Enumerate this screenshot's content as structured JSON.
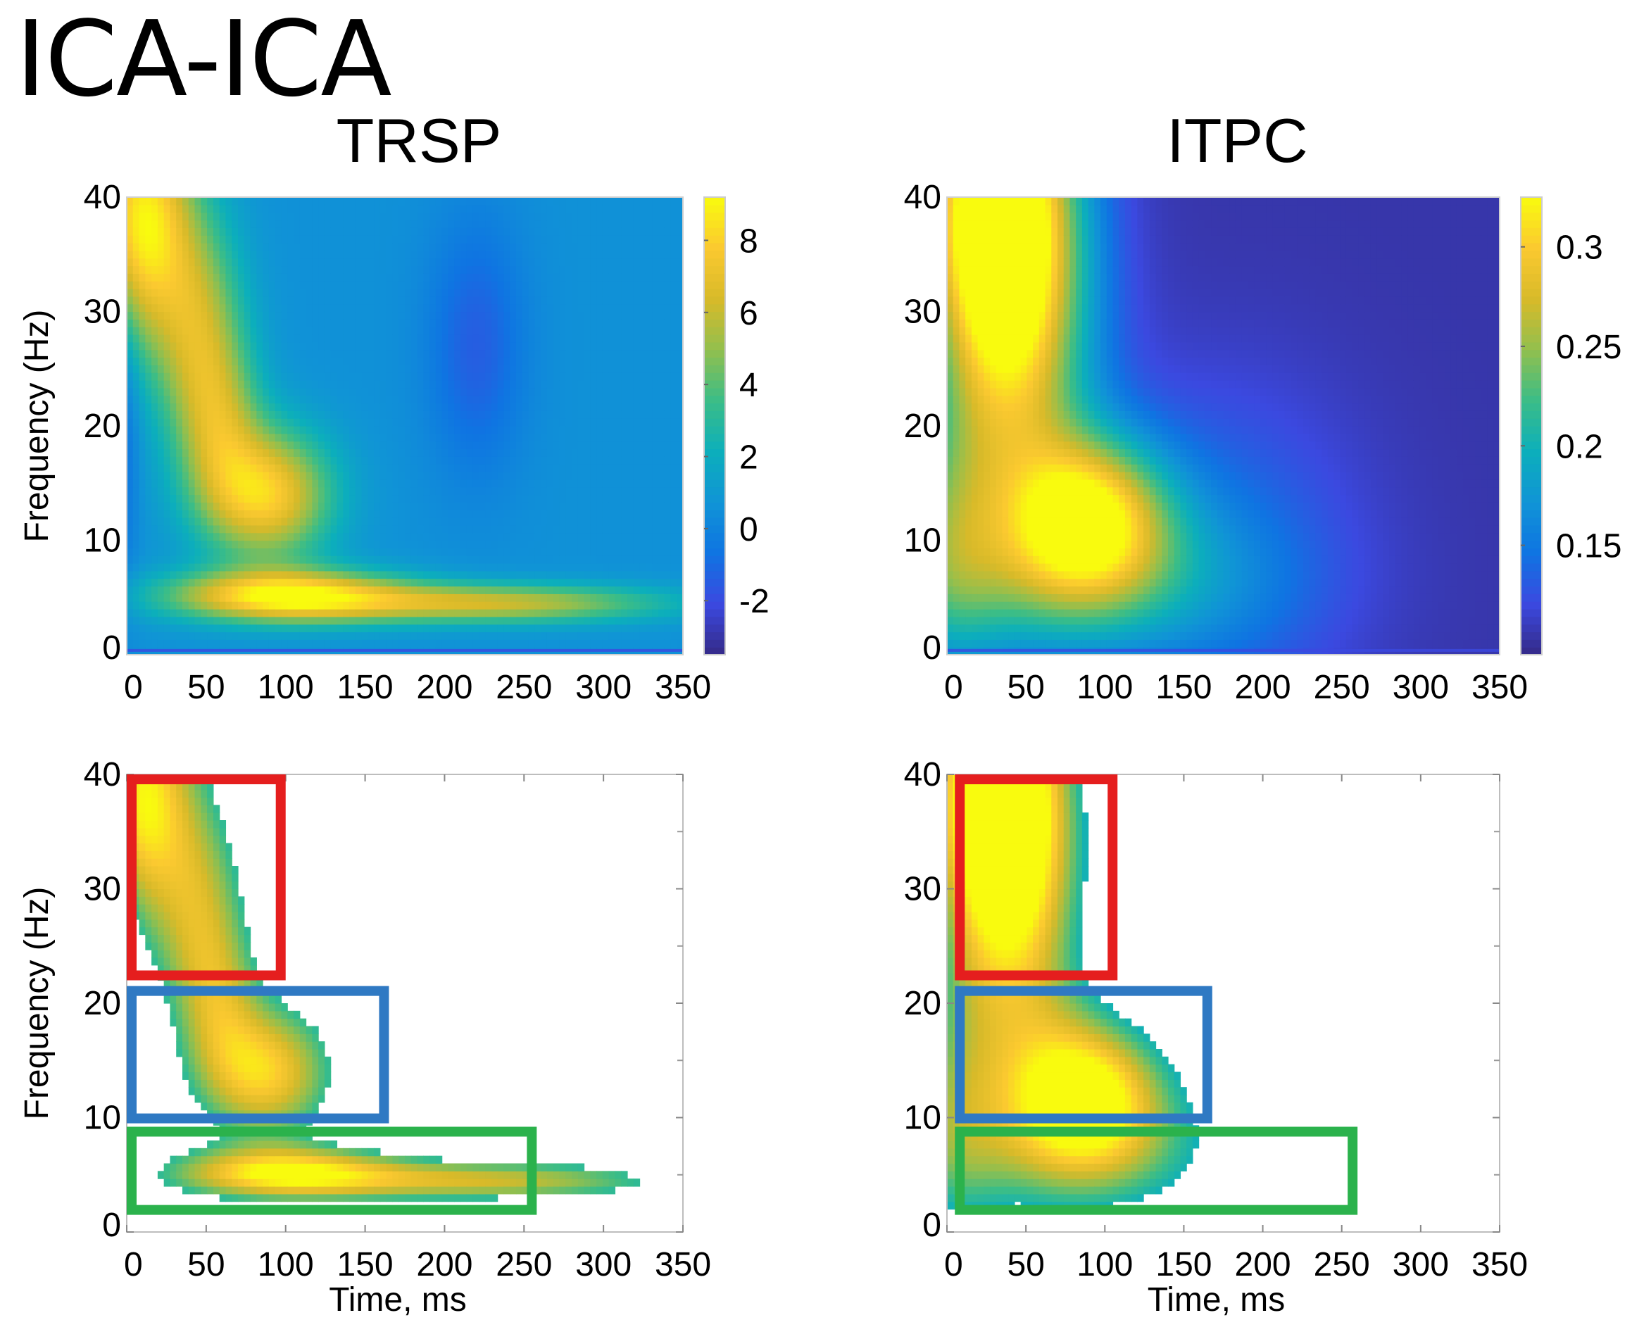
{
  "figure": {
    "title": "ICA-ICA"
  },
  "colors": {
    "parula": [
      "#352a87",
      "#3b49e0",
      "#0f74e2",
      "#1094d6",
      "#0cafbb",
      "#3bbd87",
      "#92bf4e",
      "#d8ba29",
      "#fbc930",
      "#f9fb0e"
    ],
    "box_high_freq": "#e51e1e",
    "box_mid_freq": "#2f79c3",
    "box_low_freq": "#2bb24c"
  },
  "chart_data": [
    {
      "type": "heatmap",
      "panel": "trsp-full",
      "title": "TRSP",
      "xlabel": "",
      "ylabel": "Frequency (Hz)",
      "xlim": [
        0,
        350
      ],
      "ylim": [
        0,
        40
      ],
      "x_ticks": [
        "0",
        "50",
        "100",
        "150",
        "200",
        "250",
        "300",
        "350"
      ],
      "y_ticks": [
        "0",
        "10",
        "20",
        "30",
        "40"
      ],
      "colorbar": {
        "range": [
          -3.5,
          9.2
        ],
        "ticks": [
          "-2",
          "0",
          "2",
          "4",
          "6",
          "8"
        ],
        "tick_values": [
          -2,
          0,
          2,
          4,
          6,
          8
        ]
      },
      "background_value": 0.6,
      "features": [
        {
          "label": "early high-frequency burst",
          "t": 10,
          "f": 38,
          "st": 22,
          "sf": 7,
          "amp": 8.2
        },
        {
          "label": "ridge 25-30 Hz",
          "t": 45,
          "f": 28,
          "st": 20,
          "sf": 7,
          "amp": 5.0
        },
        {
          "label": "mid-frequency peak",
          "t": 88,
          "f": 14,
          "st": 28,
          "sf": 4,
          "amp": 7.2
        },
        {
          "label": "low-frequency onset",
          "t": 100,
          "f": 5.2,
          "st": 52,
          "sf": 1.6,
          "amp": 8.0
        },
        {
          "label": "low-frequency tail",
          "t": 230,
          "f": 4.5,
          "st": 75,
          "sf": 1.2,
          "amp": 5.5
        },
        {
          "label": "ridge 20 Hz",
          "t": 60,
          "f": 20,
          "st": 18,
          "sf": 5,
          "amp": 3.5
        },
        {
          "label": "negative dip",
          "t": 220,
          "f": 27,
          "st": 22,
          "sf": 8,
          "amp": -2.0
        },
        {
          "label": "early low-freq edge",
          "t": 0,
          "f": 20,
          "st": 6,
          "sf": 10,
          "amp": -1.3
        }
      ]
    },
    {
      "type": "heatmap",
      "panel": "itpc-full",
      "title": "ITPC",
      "xlabel": "",
      "ylabel": "",
      "xlim": [
        0,
        350
      ],
      "ylim": [
        0,
        40
      ],
      "x_ticks": [
        "0",
        "50",
        "100",
        "150",
        "200",
        "250",
        "300",
        "350"
      ],
      "y_ticks": [
        "0",
        "10",
        "20",
        "30",
        "40"
      ],
      "colorbar": {
        "range": [
          0.095,
          0.325
        ],
        "ticks": [
          "0.15",
          "0.2",
          "0.25",
          "0.3"
        ],
        "tick_values": [
          0.15,
          0.2,
          0.25,
          0.3
        ]
      },
      "background_value": 0.105,
      "features": [
        {
          "label": "early broadband phase locking",
          "t": 40,
          "f": 30,
          "st": 35,
          "sf": 13,
          "amp": 0.2
        },
        {
          "label": "high-frequency onset",
          "t": 30,
          "f": 40,
          "st": 30,
          "sf": 8,
          "amp": 0.17
        },
        {
          "label": "mid-frequency lobe",
          "t": 90,
          "f": 12,
          "st": 35,
          "sf": 5,
          "amp": 0.19
        },
        {
          "label": "low-frequency spread",
          "t": 80,
          "f": 6,
          "st": 80,
          "sf": 5,
          "amp": 0.07
        },
        {
          "label": "lower-left edge",
          "t": 0,
          "f": 10,
          "st": 25,
          "sf": 8,
          "amp": 0.08
        },
        {
          "label": "diagonal tail",
          "t": 170,
          "f": 10,
          "st": 60,
          "sf": 10,
          "amp": 0.035
        }
      ]
    },
    {
      "type": "heatmap",
      "panel": "trsp-significant",
      "title": "",
      "xlabel": "Time, ms",
      "ylabel": "Frequency (Hz)",
      "xlim": [
        0,
        350
      ],
      "ylim": [
        0,
        40
      ],
      "x_ticks": [
        "0",
        "50",
        "100",
        "150",
        "200",
        "250",
        "300",
        "350"
      ],
      "y_ticks": [
        "0",
        "10",
        "20",
        "30",
        "40"
      ],
      "masked_copy_of": "trsp-full",
      "mask_threshold": 3.2,
      "regions": [
        {
          "label": "high frequency",
          "t_range": [
            0,
            100
          ],
          "f_range": [
            22,
            40
          ],
          "color_key": "box_high_freq"
        },
        {
          "label": "mid frequency",
          "t_range": [
            0,
            165
          ],
          "f_range": [
            9.5,
            21.5
          ],
          "color_key": "box_mid_freq"
        },
        {
          "label": "low frequency",
          "t_range": [
            0,
            258
          ],
          "f_range": [
            1.5,
            9.2
          ],
          "color_key": "box_low_freq"
        }
      ]
    },
    {
      "type": "heatmap",
      "panel": "itpc-significant",
      "title": "",
      "xlabel": "Time, ms",
      "ylabel": "",
      "xlim": [
        0,
        350
      ],
      "ylim": [
        0,
        40
      ],
      "x_ticks": [
        "0",
        "50",
        "100",
        "150",
        "200",
        "250",
        "300",
        "350"
      ],
      "y_ticks": [
        "0",
        "10",
        "20",
        "30",
        "40"
      ],
      "masked_copy_of": "itpc-full",
      "mask_threshold": 0.2,
      "regions": [
        {
          "label": "high frequency",
          "t_range": [
            5,
            108
          ],
          "f_range": [
            22,
            40
          ],
          "color_key": "box_high_freq"
        },
        {
          "label": "mid frequency",
          "t_range": [
            5,
            168
          ],
          "f_range": [
            9.5,
            21.5
          ],
          "color_key": "box_mid_freq"
        },
        {
          "label": "low frequency",
          "t_range": [
            5,
            260
          ],
          "f_range": [
            1.5,
            9.2
          ],
          "color_key": "box_low_freq"
        }
      ]
    }
  ]
}
